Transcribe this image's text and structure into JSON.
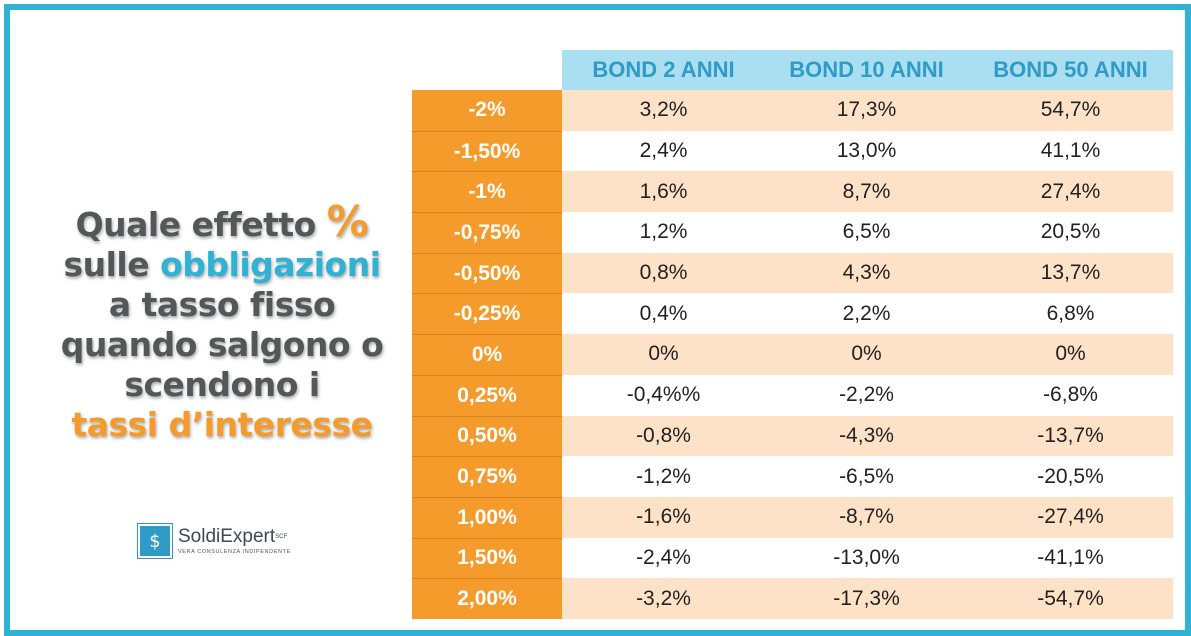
{
  "headline": {
    "line1_text": "Quale effetto ",
    "line1_pct": "%",
    "line2_text": "sulle ",
    "line2_highlight": "obbligazioni",
    "line3": "a tasso fisso",
    "line4": "quando salgono o",
    "line5": "scendono i",
    "line6": "tassi d’interesse"
  },
  "logo": {
    "icon_glyph": "$",
    "name": "SoldiExpert",
    "superscript": "SCF",
    "tagline": "VERA CONSULENZA INDIPENDENTE"
  },
  "colors": {
    "frame": "#2fb2d4",
    "orange": "#f49b2b",
    "header_bg": "#a9dff0",
    "shade_row": "#fde2c7"
  },
  "table": {
    "headers": [
      "BOND 2 ANNI",
      "BOND 10 ANNI",
      "BOND 50 ANNI"
    ],
    "rows": [
      {
        "label": "-2%",
        "values": [
          "3,2%",
          "17,3%",
          "54,7%"
        ]
      },
      {
        "label": "-1,50%",
        "values": [
          "2,4%",
          "13,0%",
          "41,1%"
        ]
      },
      {
        "label": "-1%",
        "values": [
          "1,6%",
          "8,7%",
          "27,4%"
        ]
      },
      {
        "label": "-0,75%",
        "values": [
          "1,2%",
          "6,5%",
          "20,5%"
        ]
      },
      {
        "label": "-0,50%",
        "values": [
          "0,8%",
          "4,3%",
          "13,7%"
        ]
      },
      {
        "label": "-0,25%",
        "values": [
          "0,4%",
          "2,2%",
          "6,8%"
        ]
      },
      {
        "label": "0%",
        "values": [
          "0%",
          "0%",
          "0%"
        ]
      },
      {
        "label": "0,25%",
        "values": [
          "-0,4%%",
          "-2,2%",
          "-6,8%"
        ]
      },
      {
        "label": "0,50%",
        "values": [
          "-0,8%",
          "-4,3%",
          "-13,7%"
        ]
      },
      {
        "label": "0,75%",
        "values": [
          "-1,2%",
          "-6,5%",
          "-20,5%"
        ]
      },
      {
        "label": "1,00%",
        "values": [
          "-1,6%",
          "-8,7%",
          "-27,4%"
        ]
      },
      {
        "label": "1,50%",
        "values": [
          "-2,4%",
          "-13,0%",
          "-41,1%"
        ]
      },
      {
        "label": "2,00%",
        "values": [
          "-3,2%",
          "-17,3%",
          "-54,7%"
        ]
      }
    ]
  }
}
